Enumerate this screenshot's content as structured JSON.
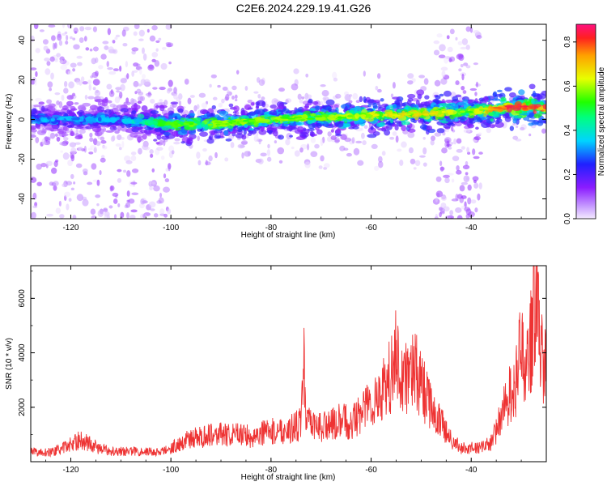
{
  "title": "C2E6.2024.229.19.41.G26",
  "colors": {
    "signal": "#ff0000",
    "snr_line": "#ee3333",
    "axis": "#000000"
  },
  "chart_data": [
    {
      "type": "heatmap",
      "title": "C2E6.2024.229.19.41.G26",
      "xlabel": "Height of straight line (km)",
      "ylabel": "Frequency (Hz)",
      "colorbar_label": "Normalized spectral amplitude",
      "xlim": [
        -128,
        -25
      ],
      "ylim": [
        -50,
        48
      ],
      "colorbar_lim": [
        0.0,
        0.88
      ],
      "x_ticks": [
        "-120",
        "-100",
        "-80",
        "-60",
        "-40"
      ],
      "y_ticks": [
        "-40",
        "-20",
        "0",
        "20",
        "40"
      ],
      "colorbar_ticks": [
        "0.0",
        "0.2",
        "0.4",
        "0.6",
        "0.8"
      ],
      "ridge": {
        "x": [
          -128,
          -110,
          -101,
          -90,
          -80,
          -70,
          -60,
          -50,
          -40,
          -33,
          -26
        ],
        "center_hz": [
          0,
          0,
          -2,
          -2,
          0,
          1,
          2,
          3,
          4,
          6,
          6
        ],
        "peak_amplitude": [
          0.35,
          0.35,
          0.55,
          0.6,
          0.6,
          0.6,
          0.65,
          0.7,
          0.6,
          0.85,
          0.85
        ]
      },
      "scatter_regions": [
        {
          "x_range": [
            -128,
            -100
          ],
          "freq_range": [
            -50,
            48
          ]
        },
        {
          "x_range": [
            -47,
            -38
          ],
          "freq_range": [
            -50,
            48
          ]
        }
      ]
    },
    {
      "type": "line",
      "xlabel": "Height of straight line (km)",
      "ylabel": "SNR (10 * v/v)",
      "xlim": [
        -128,
        -25
      ],
      "ylim": [
        0,
        7200
      ],
      "x_ticks": [
        "-120",
        "-100",
        "-80",
        "-60",
        "-40"
      ],
      "y_ticks": [
        "2000",
        "4000",
        "6000"
      ],
      "series": [
        {
          "x": [
            -128,
            -124,
            -122,
            -120,
            -118,
            -116,
            -114,
            -110,
            -106,
            -102,
            -100,
            -98,
            -96,
            -94,
            -92,
            -90,
            -88,
            -86,
            -84,
            -82,
            -80,
            -78,
            -76,
            -74,
            -73.5,
            -73,
            -72,
            -70,
            -68,
            -66,
            -64,
            -62,
            -60,
            -58,
            -56,
            -55,
            -54,
            -52,
            -51,
            -50,
            -48,
            -46,
            -44,
            -42,
            -40,
            -38,
            -36,
            -34,
            -33,
            -32,
            -31,
            -30,
            -29,
            -28,
            -27.5,
            -27,
            -26.5,
            -26,
            -25
          ],
          "y": [
            350,
            350,
            450,
            650,
            800,
            650,
            450,
            380,
            380,
            350,
            500,
            700,
            850,
            900,
            1050,
            1000,
            950,
            1050,
            900,
            1050,
            1100,
            1150,
            1200,
            1400,
            4000,
            1500,
            1300,
            1300,
            1350,
            1500,
            1450,
            1800,
            2200,
            2500,
            3200,
            4100,
            3000,
            3200,
            3400,
            2800,
            2000,
            1400,
            800,
            500,
            500,
            500,
            700,
            1600,
            2200,
            2600,
            2900,
            4200,
            3300,
            4600,
            6000,
            7100,
            5600,
            4000,
            3500
          ]
        }
      ]
    }
  ]
}
